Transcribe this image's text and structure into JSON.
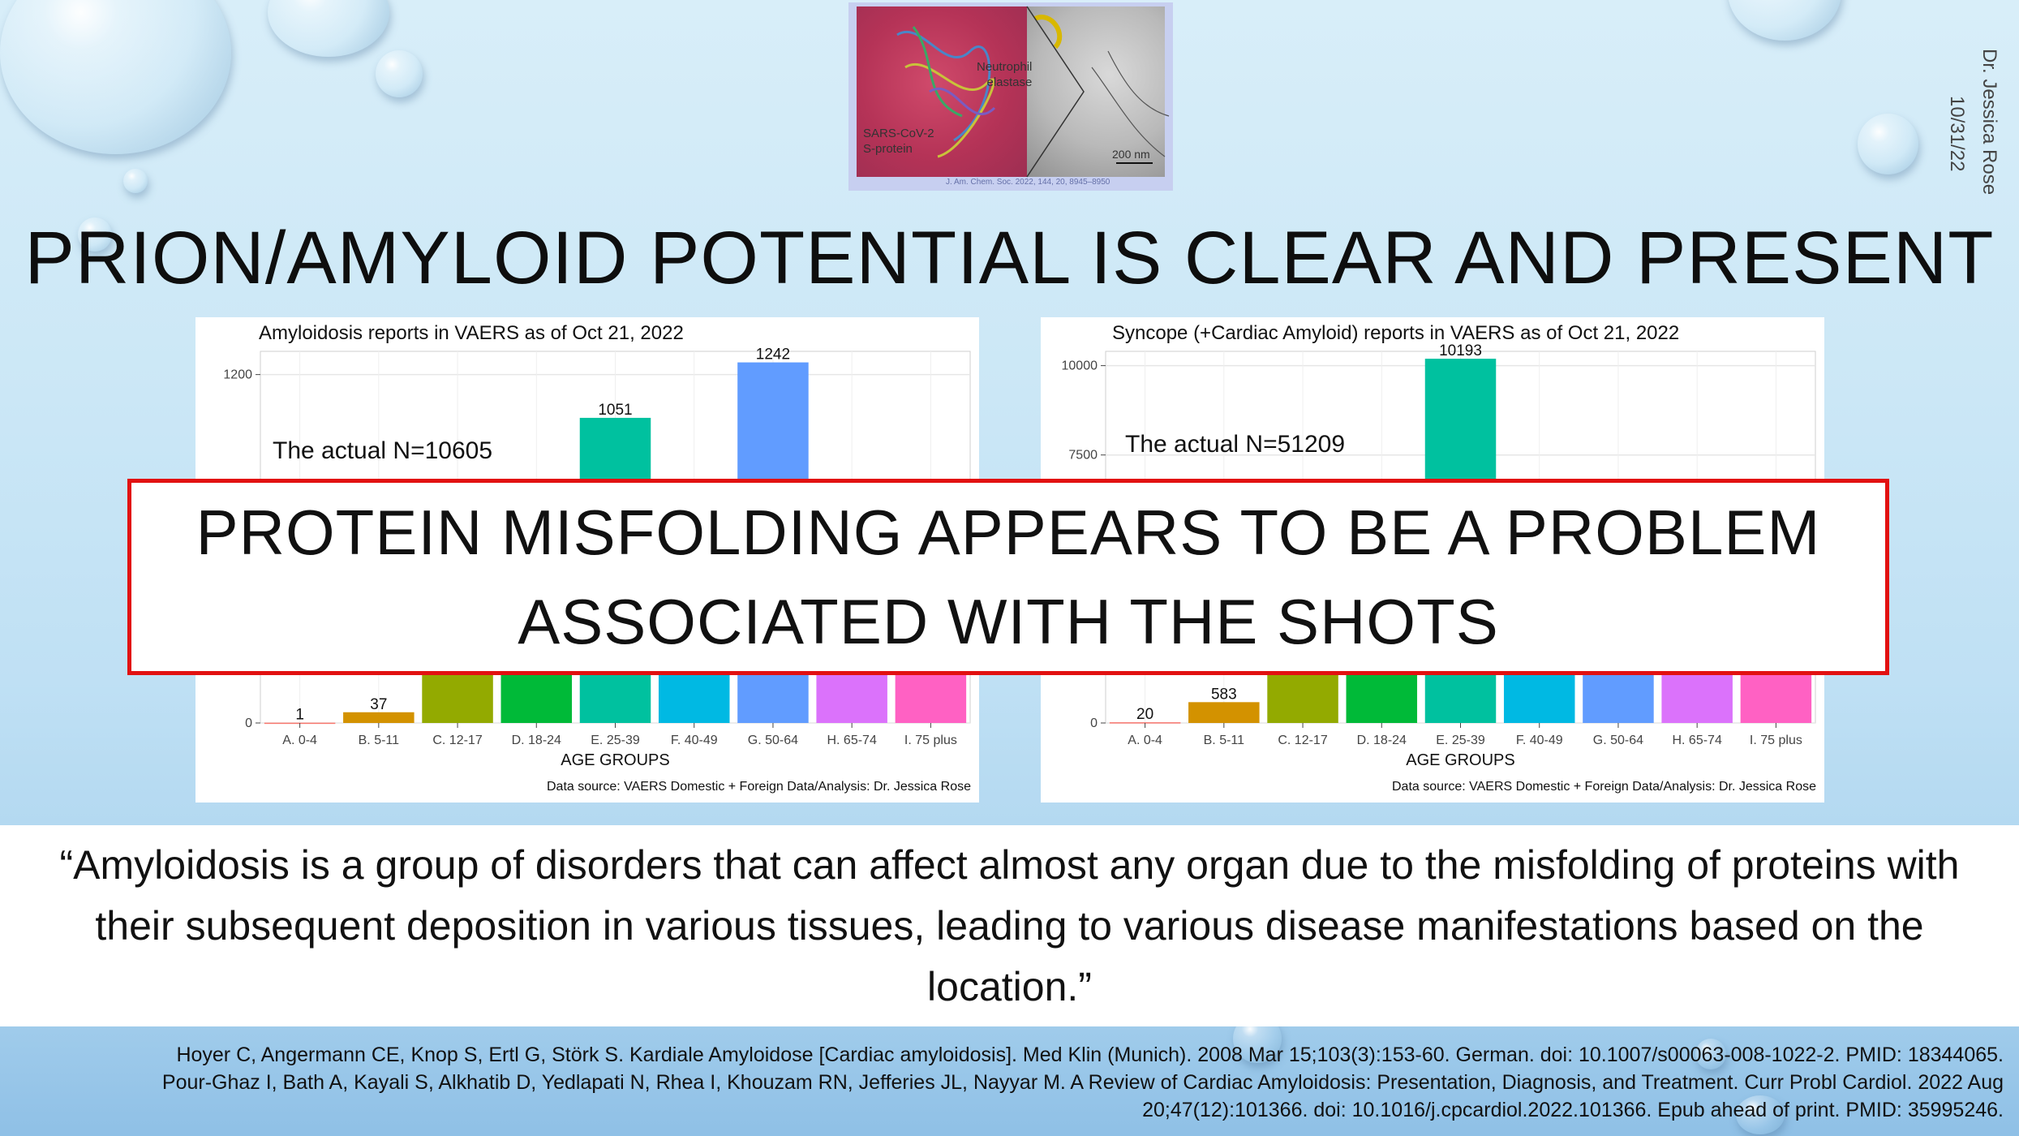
{
  "slide": {
    "title": "PRION/AMYLOID POTENTIAL IS CLEAR AND PRESENT",
    "author": "Dr. Jessica Rose",
    "date": "10/31/22"
  },
  "thumbnail": {
    "label_left_1": "SARS-CoV-2",
    "label_left_2": "S-protein",
    "label_right_1": "Neutrophil",
    "label_right_2": "elastase",
    "scale_bar": "200 nm",
    "citation": "J. Am. Chem. Soc. 2022, 144, 20, 8945–8950"
  },
  "overlay": {
    "line1": "PROTEIN MISFOLDING APPEARS TO BE A PROBLEM",
    "line2": "ASSOCIATED WITH THE SHOTS"
  },
  "quote": {
    "text": "“Amyloidosis is a group of disorders that can affect almost any organ due to the misfolding of proteins with their subsequent deposition in various tissues, leading to various disease manifestations based on the location.”"
  },
  "references": {
    "line1": "Hoyer C, Angermann CE, Knop S, Ertl G, Störk S. Kardiale Amyloidose [Cardiac amyloidosis]. Med Klin (Munich). 2008 Mar 15;103(3):153-60. German. doi: 10.1007/s00063-008-1022-2. PMID: 18344065.",
    "line2": "Pour-Ghaz I, Bath A, Kayali S, Alkhatib D, Yedlapati N, Rhea I, Khouzam RN, Jefferies JL, Nayyar M. A Review of Cardiac Amyloidosis: Presentation, Diagnosis, and Treatment. Curr Probl Cardiol. 2022 Aug",
    "line3": "20;47(12):101366. doi: 10.1016/j.cpcardiol.2022.101366. Epub ahead of print. PMID: 35995246."
  },
  "chart_data": [
    {
      "type": "bar",
      "title": "Amyloidosis reports in VAERS as of Oct 21, 2022",
      "xlabel": "AGE GROUPS",
      "ylabel": "",
      "ylim": [
        0,
        1280
      ],
      "y_ticks": [
        "0",
        "1200"
      ],
      "y_tick_values": [
        0,
        1200
      ],
      "annotation": "The actual N=10605",
      "source_note": "Data source: VAERS Domestic + Foreign Data/Analysis: Dr. Jessica Rose",
      "categories": [
        "A. 0-4",
        "B. 5-11",
        "C. 12-17",
        "D. 18-24",
        "E. 25-39",
        "F. 40-49",
        "G. 50-64",
        "H. 65-74",
        "I. 75 plus"
      ],
      "values": [
        1,
        37,
        null,
        null,
        1051,
        null,
        1242,
        null,
        null
      ],
      "value_labels": [
        "1",
        "37",
        "",
        "",
        "1051",
        "",
        "1242",
        "",
        ""
      ],
      "colors": [
        "#f8766d",
        "#d39200",
        "#93aa00",
        "#00ba38",
        "#00c19f",
        "#00b9e3",
        "#619cff",
        "#db72fb",
        "#ff61c3"
      ],
      "grid": true
    },
    {
      "type": "bar",
      "title": "Syncope (+Cardiac Amyloid) reports in VAERS as of Oct 21, 2022",
      "xlabel": "AGE GROUPS",
      "ylabel": "",
      "ylim": [
        0,
        10400
      ],
      "y_ticks": [
        "0",
        "7500",
        "10000"
      ],
      "y_tick_values": [
        0,
        7500,
        10000
      ],
      "annotation": "The actual N=51209",
      "source_note": "Data source: VAERS Domestic + Foreign Data/Analysis: Dr. Jessica Rose",
      "categories": [
        "A. 0-4",
        "B. 5-11",
        "C. 12-17",
        "D. 18-24",
        "E. 25-39",
        "F. 40-49",
        "G. 50-64",
        "H. 65-74",
        "I. 75 plus"
      ],
      "values": [
        20,
        583,
        null,
        null,
        10193,
        null,
        null,
        null,
        null
      ],
      "value_labels": [
        "20",
        "583",
        "",
        "",
        "10193",
        "",
        "",
        "",
        ""
      ],
      "colors": [
        "#f8766d",
        "#d39200",
        "#93aa00",
        "#00ba38",
        "#00c19f",
        "#00b9e3",
        "#619cff",
        "#db72fb",
        "#ff61c3"
      ],
      "grid": true
    }
  ]
}
